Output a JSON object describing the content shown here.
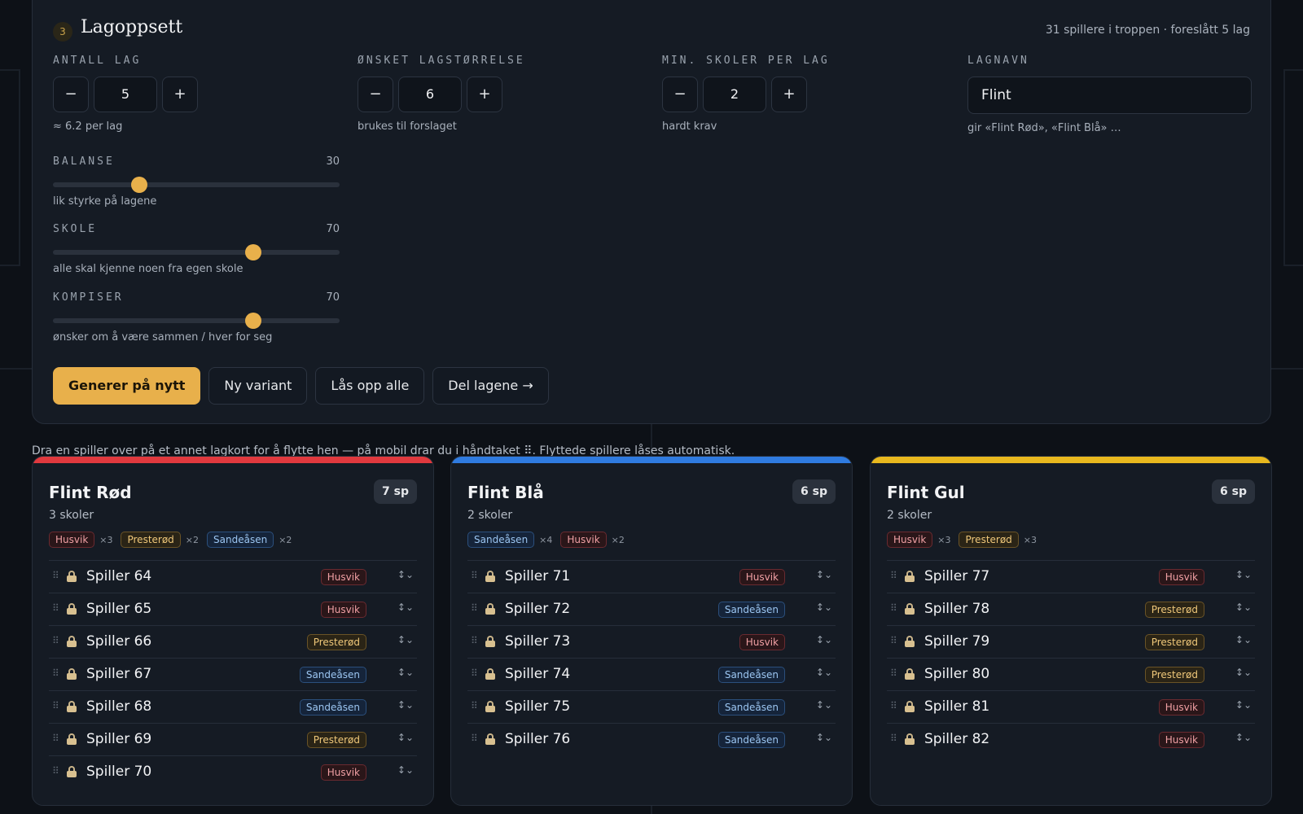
{
  "setup": {
    "step": "3",
    "title": "Lagoppsett",
    "meta": "31 spillere i troppen · foreslått 5 lag",
    "fields": [
      {
        "label": "ANTALL LAG",
        "minus": "−",
        "value": "5",
        "plus": "+",
        "hint": "≈ 6.2 per lag"
      },
      {
        "label": "ØNSKET LAGSTØRRELSE",
        "minus": "−",
        "value": "6",
        "plus": "+",
        "hint": "brukes til forslaget"
      },
      {
        "label": "MIN. SKOLER PER LAG",
        "minus": "−",
        "value": "2",
        "plus": "+",
        "hint": "hardt krav"
      }
    ],
    "teamname": {
      "label": "LAGNAVN",
      "value": "Flint",
      "hint": "gir «Flint Rød», «Flint Blå» …"
    },
    "sliders": [
      {
        "label": "BALANSE",
        "value": 30,
        "value_text": "30",
        "hint": "lik styrke på lagene"
      },
      {
        "label": "SKOLE",
        "value": 70,
        "value_text": "70",
        "hint": "alle skal kjenne noen fra egen skole"
      },
      {
        "label": "KOMPISER",
        "value": 70,
        "value_text": "70",
        "hint": "ønsker om å være sammen / hver for seg"
      }
    ],
    "actions": {
      "generate": "Generer på nytt",
      "variant": "Ny variant",
      "unlock": "Lås opp alle",
      "share": "Del lagene →"
    }
  },
  "drag_hint": "Dra en spiller over på et annet lagkort for å flytte hen — på mobil drar du i håndtaket ⠿. Flyttede spillere låses automatisk.",
  "colors": {
    "red": "#e0393e",
    "blue": "#2f7be0",
    "yellow": "#e8b81e",
    "accent": "#e8b04b"
  },
  "icons": {
    "grip": "⠿",
    "lock": "lock-icon",
    "select": "↕⌄"
  },
  "teams": [
    {
      "name": "Flint Rød",
      "count": "7 sp",
      "schools": "3 skoler",
      "color_key": "red",
      "tags": [
        {
          "school": "Husvik",
          "cls": "husvik",
          "mult": "×3"
        },
        {
          "school": "Presterød",
          "cls": "presterod",
          "mult": "×2"
        },
        {
          "school": "Sandeåsen",
          "cls": "sandeasen",
          "mult": "×2"
        }
      ],
      "players": [
        {
          "name": "Spiller 64",
          "school": "Husvik",
          "cls": "husvik"
        },
        {
          "name": "Spiller 65",
          "school": "Husvik",
          "cls": "husvik"
        },
        {
          "name": "Spiller 66",
          "school": "Presterød",
          "cls": "presterod"
        },
        {
          "name": "Spiller 67",
          "school": "Sandeåsen",
          "cls": "sandeasen"
        },
        {
          "name": "Spiller 68",
          "school": "Sandeåsen",
          "cls": "sandeasen"
        },
        {
          "name": "Spiller 69",
          "school": "Presterød",
          "cls": "presterod"
        },
        {
          "name": "Spiller 70",
          "school": "Husvik",
          "cls": "husvik"
        }
      ]
    },
    {
      "name": "Flint Blå",
      "count": "6 sp",
      "schools": "2 skoler",
      "color_key": "blue",
      "tags": [
        {
          "school": "Sandeåsen",
          "cls": "sandeasen",
          "mult": "×4"
        },
        {
          "school": "Husvik",
          "cls": "husvik",
          "mult": "×2"
        }
      ],
      "players": [
        {
          "name": "Spiller 71",
          "school": "Husvik",
          "cls": "husvik"
        },
        {
          "name": "Spiller 72",
          "school": "Sandeåsen",
          "cls": "sandeasen"
        },
        {
          "name": "Spiller 73",
          "school": "Husvik",
          "cls": "husvik"
        },
        {
          "name": "Spiller 74",
          "school": "Sandeåsen",
          "cls": "sandeasen"
        },
        {
          "name": "Spiller 75",
          "school": "Sandeåsen",
          "cls": "sandeasen"
        },
        {
          "name": "Spiller 76",
          "school": "Sandeåsen",
          "cls": "sandeasen"
        }
      ]
    },
    {
      "name": "Flint Gul",
      "count": "6 sp",
      "schools": "2 skoler",
      "color_key": "yellow",
      "tags": [
        {
          "school": "Husvik",
          "cls": "husvik",
          "mult": "×3"
        },
        {
          "school": "Presterød",
          "cls": "presterod",
          "mult": "×3"
        }
      ],
      "players": [
        {
          "name": "Spiller 77",
          "school": "Husvik",
          "cls": "husvik"
        },
        {
          "name": "Spiller 78",
          "school": "Presterød",
          "cls": "presterod"
        },
        {
          "name": "Spiller 79",
          "school": "Presterød",
          "cls": "presterod"
        },
        {
          "name": "Spiller 80",
          "school": "Presterød",
          "cls": "presterod"
        },
        {
          "name": "Spiller 81",
          "school": "Husvik",
          "cls": "husvik"
        },
        {
          "name": "Spiller 82",
          "school": "Husvik",
          "cls": "husvik"
        }
      ]
    }
  ]
}
